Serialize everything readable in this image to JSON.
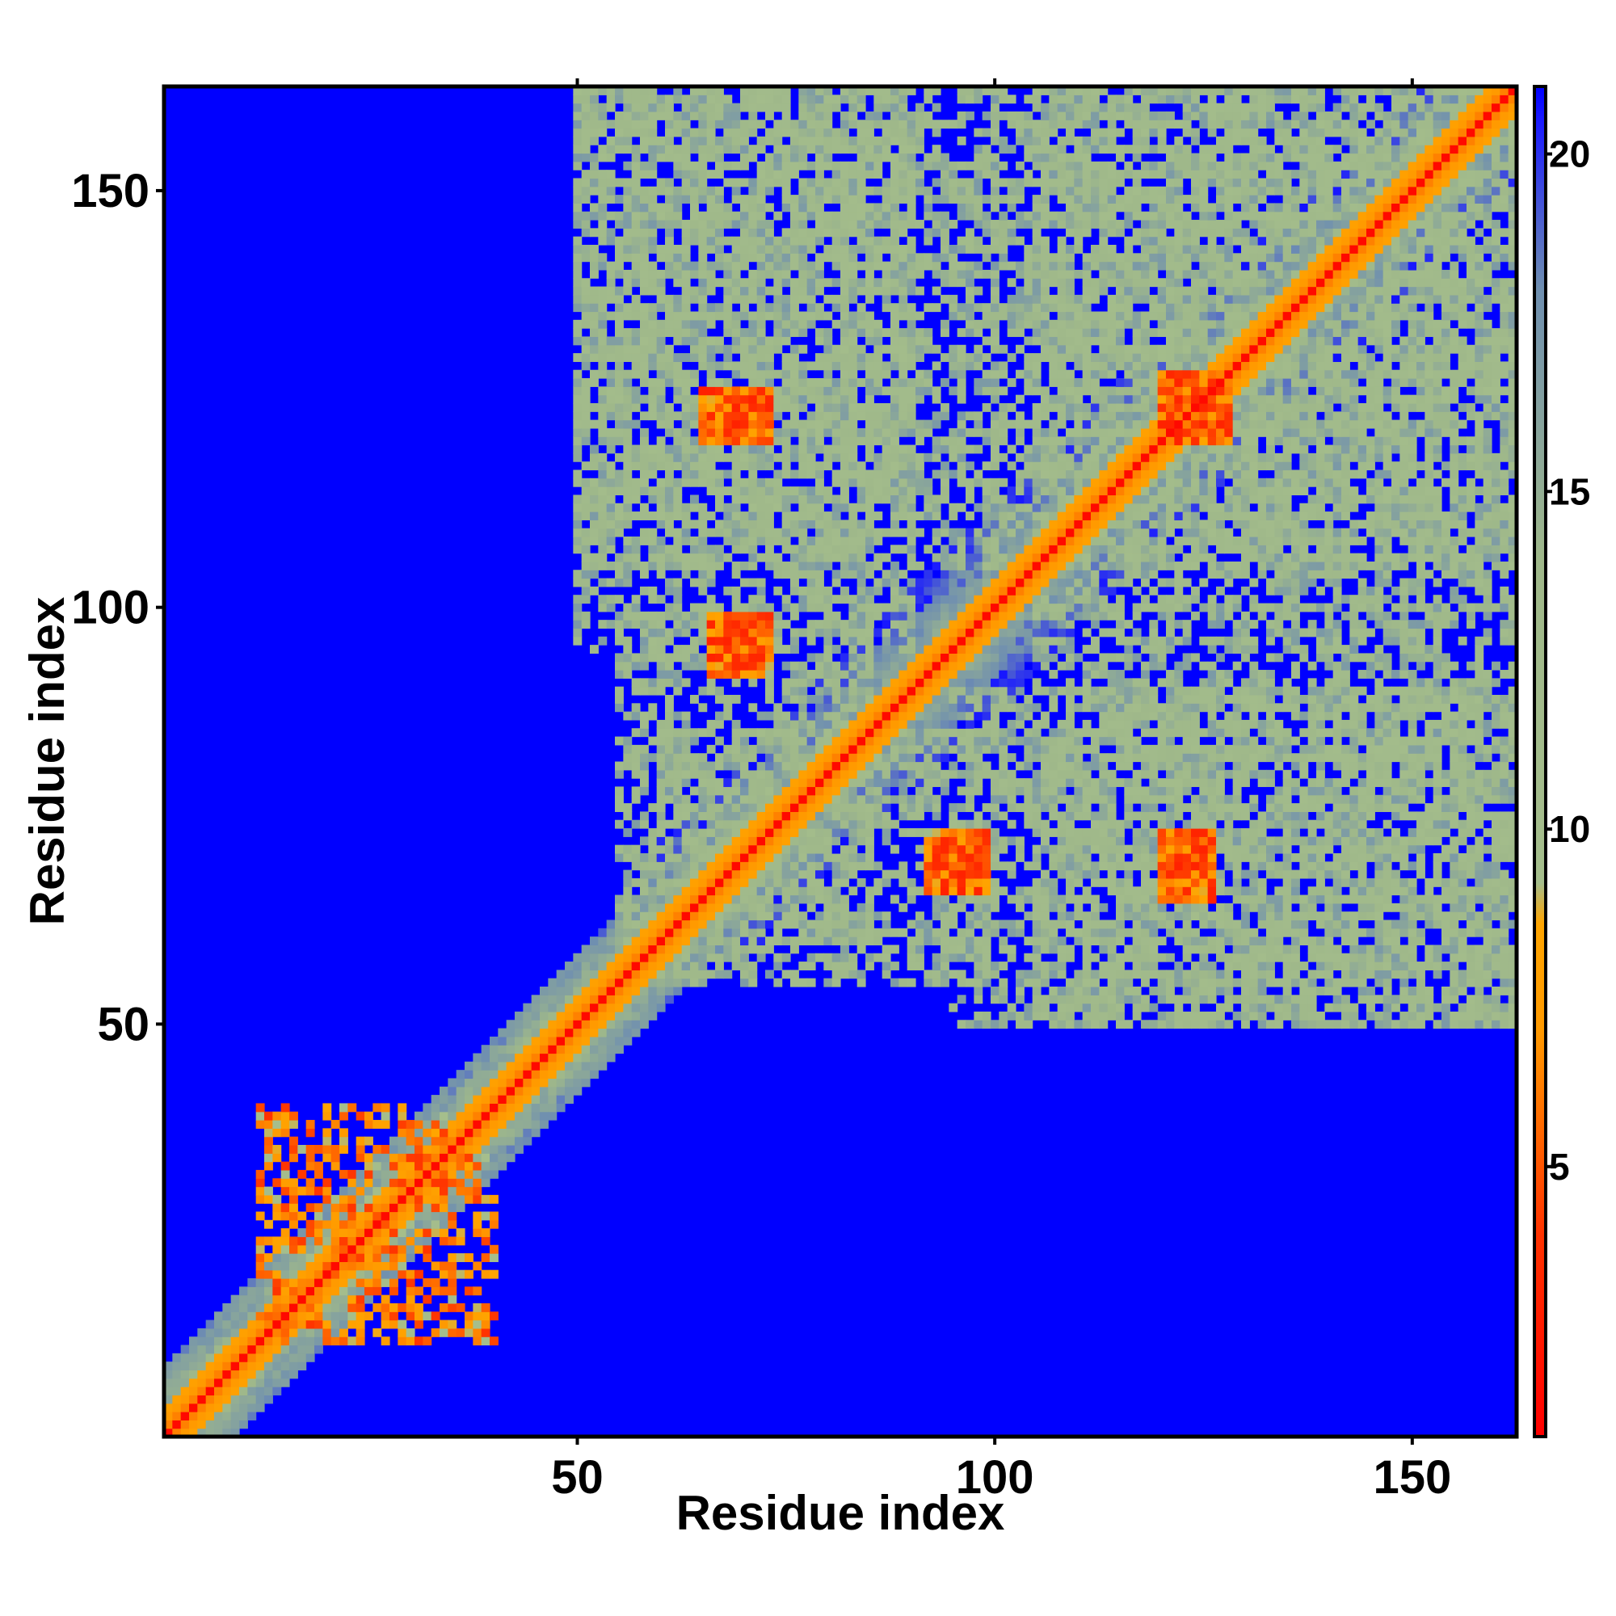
{
  "chart_data": {
    "type": "heatmap",
    "title": "",
    "xlabel": "Residue index",
    "ylabel": "Residue index",
    "residue_range": [
      1,
      162
    ],
    "xlim": [
      1,
      162
    ],
    "ylim": [
      1,
      162
    ],
    "x_ticks": [
      50,
      100,
      150
    ],
    "y_ticks": [
      50,
      100,
      150
    ],
    "x_tick_labels": [
      "50",
      "100",
      "150"
    ],
    "y_tick_labels": [
      "50",
      "100",
      "150"
    ],
    "value_range": [
      1,
      21
    ],
    "colorbar": {
      "ticks": [
        5,
        10,
        15,
        20
      ],
      "tick_labels": [
        "5",
        "10",
        "15",
        "20"
      ],
      "stops": [
        {
          "value": 1,
          "color": "#ff0000"
        },
        {
          "value": 4,
          "color": "#ff3300"
        },
        {
          "value": 7,
          "color": "#ff9900"
        },
        {
          "value": 8.6,
          "color": "#ffa500"
        },
        {
          "value": 9.2,
          "color": "#a5be8c"
        },
        {
          "value": 14,
          "color": "#9fb88a"
        },
        {
          "value": 18,
          "color": "#6f8fb0"
        },
        {
          "value": 20.5,
          "color": "#1a1aff"
        },
        {
          "value": 21,
          "color": "#0000ff"
        }
      ]
    },
    "background_value": 21,
    "grid": false,
    "symmetric_matrix": true,
    "contact_regions": [
      {
        "i_range": [
          1,
          162
        ],
        "j_offset_max": 0,
        "value": 1.5,
        "note": "main diagonal"
      },
      {
        "i_range": [
          1,
          162
        ],
        "j_offset_max": 3,
        "value": 5.5
      },
      {
        "i_range": [
          1,
          70
        ],
        "j_offset_max": 8,
        "value": 13
      },
      {
        "i_range": [
          70,
          162
        ],
        "j_offset_max": 12,
        "value": 14
      },
      {
        "x_range": [
          50,
          100
        ],
        "y_range": [
          105,
          162
        ],
        "value": 14,
        "density": 0.6
      },
      {
        "x_range": [
          55,
          85
        ],
        "y_range": [
          60,
          100
        ],
        "value": 14,
        "density": 0.55
      },
      {
        "x_range": [
          95,
          162
        ],
        "y_range": [
          50,
          90
        ],
        "value": 14,
        "density": 0.55
      },
      {
        "x_range": [
          100,
          162
        ],
        "y_range": [
          105,
          162
        ],
        "value": 14,
        "density": 0.6
      },
      {
        "x_range": [
          68,
          73
        ],
        "y_range": [
          120,
          126
        ],
        "value": 6
      },
      {
        "x_range": [
          68,
          73
        ],
        "y_range": [
          93,
          99
        ],
        "value": 6
      },
      {
        "x_range": [
          92,
          99
        ],
        "y_range": [
          66,
          72
        ],
        "value": 6
      },
      {
        "x_range": [
          120,
          126
        ],
        "y_range": [
          65,
          72
        ],
        "value": 6
      },
      {
        "x_range": [
          120,
          126
        ],
        "y_range": [
          120,
          128
        ],
        "value": 6
      },
      {
        "x_range": [
          12,
          40
        ],
        "y_range": [
          12,
          40
        ],
        "value": 7,
        "density": 0.3
      }
    ]
  }
}
